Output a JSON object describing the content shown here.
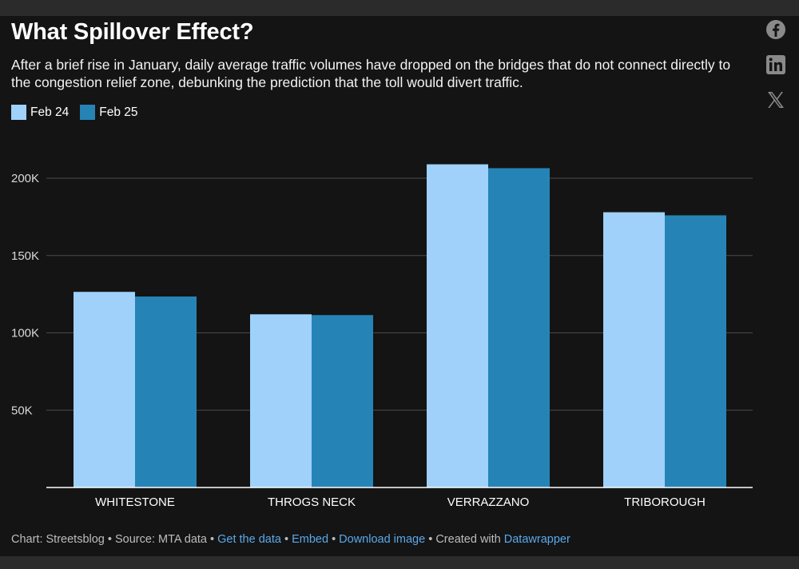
{
  "header": {
    "title": "What Spillover Effect?",
    "subtitle": "After a brief rise in January, daily average traffic volumes have dropped on the bridges that do not connect directly to the congestion relief zone, debunking the prediction that the toll would divert traffic."
  },
  "social": [
    "facebook-icon",
    "linkedin-icon",
    "x-icon"
  ],
  "colors": {
    "background": "#141414",
    "series_light": "#9fd1fb",
    "series_dark": "#2584b5",
    "grid": "#4a4a4a",
    "axis_text": "#d9d9d9",
    "link": "#5aa9ec"
  },
  "chart_data": {
    "type": "bar",
    "title": "What Spillover Effect?",
    "categories": [
      "WHITESTONE",
      "THROGS NECK",
      "VERRAZZANO",
      "TRIBOROUGH"
    ],
    "series": [
      {
        "name": "Feb 24",
        "color": "#9fd1fb",
        "values": [
          126500,
          112000,
          209000,
          178000
        ]
      },
      {
        "name": "Feb 25",
        "color": "#2584b5",
        "values": [
          123500,
          111500,
          206500,
          176000
        ]
      }
    ],
    "yticks": [
      50000,
      100000,
      150000,
      200000
    ],
    "ytick_labels": [
      "50K",
      "100K",
      "150K",
      "200K"
    ],
    "ylim": [
      0,
      220000
    ],
    "xlabel": "",
    "ylabel": "",
    "grid": true,
    "legend_position": "top-left"
  },
  "footer": {
    "credit": "Chart: Streetsblog • Source: MTA data •",
    "get_data": "Get the data",
    "sep1": "•",
    "embed": "Embed",
    "sep2": "•",
    "download": "Download image",
    "created": "• Created with",
    "tool": "Datawrapper"
  }
}
